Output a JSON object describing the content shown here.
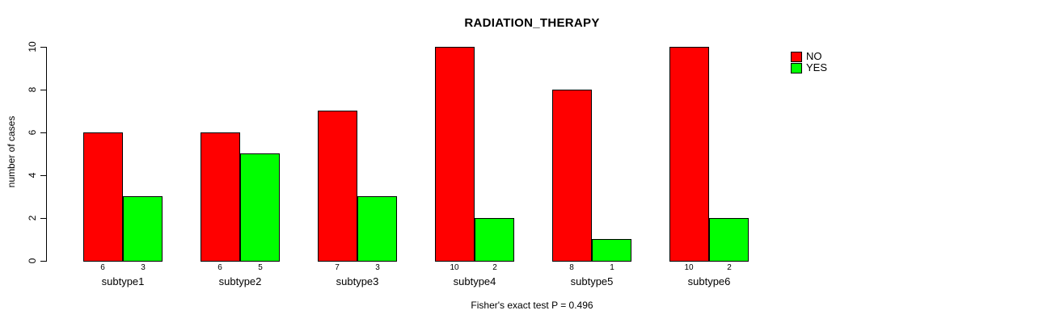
{
  "title": "RADIATION_THERAPY",
  "footer": "Fisher's exact test P = 0.496",
  "legend": {
    "position": "top-right",
    "items": [
      {
        "label": "NO",
        "color": "#ff0000"
      },
      {
        "label": "YES",
        "color": "#00ff00"
      }
    ]
  },
  "chart_data": {
    "type": "bar",
    "title": "RADIATION_THERAPY",
    "xlabel": "",
    "ylabel": "number of cases",
    "ylim": [
      0,
      10
    ],
    "yticks": [
      0,
      2,
      4,
      6,
      8,
      10
    ],
    "grid": false,
    "legend_position": "top-right",
    "categories": [
      "subtype1",
      "subtype2",
      "subtype3",
      "subtype4",
      "subtype5",
      "subtype6"
    ],
    "series": [
      {
        "name": "NO",
        "color": "#ff0000",
        "values": [
          6,
          6,
          7,
          10,
          8,
          10
        ]
      },
      {
        "name": "YES",
        "color": "#00ff00",
        "values": [
          3,
          5,
          3,
          2,
          1,
          2
        ]
      }
    ],
    "bar_value_labels": [
      [
        "6",
        "3"
      ],
      [
        "6",
        "5"
      ],
      [
        "7",
        "3"
      ],
      [
        "10",
        "2"
      ],
      [
        "8",
        "1"
      ],
      [
        "10",
        "2"
      ]
    ],
    "annotation": "Fisher's exact test P = 0.496"
  }
}
